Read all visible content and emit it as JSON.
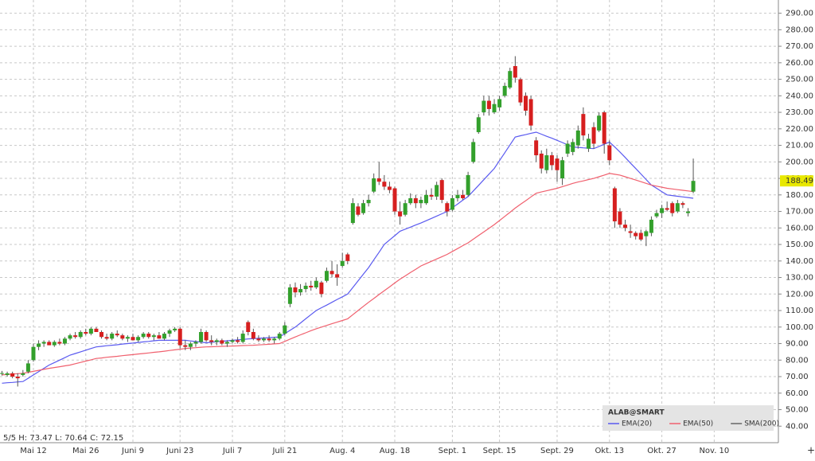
{
  "chart_data": {
    "type": "candlestick",
    "info": "5/5  H: 73.47  L: 70.64  C: 72.15",
    "legend_title": "ALAB@SMART",
    "last_price": 188.49,
    "up_color": "#33a02c",
    "down_color": "#d61f1f",
    "grid": true,
    "categories": [
      null,
      null,
      null,
      null,
      null,
      null,
      "Mai 12",
      null,
      null,
      null,
      null,
      null,
      null,
      null,
      null,
      null,
      "Mai 26",
      null,
      null,
      null,
      null,
      null,
      null,
      null,
      null,
      "Juni 9",
      null,
      null,
      null,
      null,
      null,
      null,
      null,
      null,
      "Juni 23",
      null,
      null,
      null,
      null,
      null,
      null,
      null,
      null,
      null,
      "Juli 7",
      null,
      null,
      null,
      null,
      null,
      null,
      null,
      null,
      null,
      "Juli 21",
      null,
      null,
      null,
      null,
      null,
      null,
      null,
      null,
      null,
      null,
      "Aug. 4",
      null,
      null,
      null,
      null,
      null,
      null,
      null,
      null,
      null,
      "Aug. 18",
      null,
      null,
      null,
      null,
      null,
      null,
      null,
      null,
      null,
      null,
      "Sept. 1",
      null,
      null,
      null,
      null,
      null,
      null,
      null,
      null,
      "Sept. 15",
      null,
      null,
      null,
      null,
      null,
      null,
      null,
      null,
      null,
      null,
      "Sept. 29",
      null,
      null,
      null,
      null,
      null,
      null,
      null,
      null,
      null,
      "Okt. 13",
      null,
      null,
      null,
      null,
      null,
      null,
      null,
      null,
      null,
      "Okt. 27",
      null,
      null,
      null,
      null,
      null,
      null,
      null,
      null,
      null,
      "Nov. 10"
    ],
    "open": [
      72,
      71,
      72,
      70,
      71,
      73,
      80,
      88,
      90,
      91,
      89,
      91,
      90,
      93,
      95,
      94,
      97,
      96,
      99,
      97,
      94,
      93,
      96,
      95,
      93,
      94,
      92,
      94,
      96,
      94,
      95,
      93,
      96,
      98,
      99,
      89,
      88,
      90,
      91,
      97,
      92,
      91,
      92,
      90,
      91,
      92,
      91,
      103,
      97,
      93,
      92,
      93,
      92,
      93,
      96,
      114,
      124,
      121,
      123,
      125,
      124,
      127,
      128,
      134,
      132,
      137,
      144,
      163,
      173,
      169,
      175,
      182,
      190,
      188,
      185,
      184,
      170,
      168,
      175,
      178,
      175,
      175,
      180,
      179,
      189,
      175,
      171,
      178,
      180,
      180,
      200,
      218,
      230,
      237,
      230,
      233,
      240,
      245,
      258,
      250,
      240,
      238,
      213,
      205,
      195,
      204,
      202,
      190,
      205,
      206,
      210,
      229,
      208,
      221,
      219,
      230,
      210,
      184,
      170,
      162,
      158,
      157,
      157,
      155,
      157,
      167,
      169,
      172,
      175,
      170,
      175,
      169,
      182,
      null,
      null,
      null,
      null
    ],
    "high": [
      73.47,
      73,
      73,
      72,
      74,
      80,
      90,
      92,
      92,
      92,
      92,
      93,
      94,
      96,
      97,
      98,
      99,
      100,
      100,
      98,
      96,
      97,
      98,
      96,
      95,
      96,
      95,
      97,
      97,
      96,
      97,
      97,
      99,
      100,
      100,
      92,
      91,
      92,
      99,
      98,
      95,
      93,
      93,
      92,
      93,
      94,
      98,
      104,
      99,
      95,
      94,
      95,
      94,
      97,
      103,
      126,
      127,
      126,
      127,
      128,
      130,
      128,
      136,
      140,
      138,
      145,
      145,
      178,
      175,
      177,
      180,
      193,
      200,
      192,
      188,
      185,
      176,
      177,
      181,
      180,
      179,
      183,
      184,
      188,
      190,
      176,
      180,
      183,
      183,
      194,
      214,
      229,
      240,
      240,
      238,
      240,
      248,
      257,
      264,
      251,
      242,
      240,
      215,
      207,
      208,
      206,
      204,
      203,
      213,
      214,
      222,
      233,
      217,
      224,
      230,
      231,
      213,
      185,
      172,
      165,
      162,
      158,
      159,
      159,
      167,
      171,
      174,
      176,
      176,
      177,
      176,
      172,
      202,
      null,
      null,
      null,
      null
    ],
    "low": [
      70.64,
      70,
      69,
      64,
      70,
      72,
      79,
      86,
      88,
      89,
      88,
      89,
      89,
      92,
      93,
      93,
      95,
      95,
      97,
      93,
      92,
      92,
      94,
      92,
      91,
      92,
      91,
      93,
      93,
      92,
      93,
      92,
      94,
      97,
      87,
      86,
      86,
      88,
      90,
      91,
      89,
      89,
      89,
      88,
      90,
      90,
      90,
      95,
      92,
      91,
      91,
      91,
      90,
      92,
      95,
      112,
      118,
      119,
      121,
      122,
      123,
      118,
      127,
      130,
      125,
      136,
      138,
      162,
      167,
      168,
      173,
      181,
      186,
      183,
      181,
      168,
      162,
      167,
      174,
      172,
      172,
      174,
      177,
      177,
      175,
      167,
      170,
      176,
      177,
      179,
      199,
      217,
      228,
      228,
      229,
      231,
      239,
      244,
      248,
      234,
      228,
      219,
      200,
      193,
      193,
      195,
      188,
      186,
      203,
      204,
      208,
      213,
      206,
      208,
      218,
      205,
      198,
      160,
      160,
      158,
      154,
      153,
      152,
      149,
      155,
      166,
      166,
      170,
      167,
      169,
      172,
      167,
      181,
      null,
      null,
      null,
      null
    ],
    "close": [
      72.15,
      72,
      70,
      69,
      72,
      78,
      88,
      90,
      91,
      89,
      91,
      90,
      93,
      95,
      94,
      97,
      96,
      99,
      97,
      94,
      93,
      96,
      95,
      93,
      94,
      92,
      94,
      96,
      94,
      95,
      93,
      96,
      98,
      99,
      89,
      88,
      90,
      91,
      97,
      92,
      91,
      92,
      90,
      91,
      92,
      91,
      96,
      97,
      93,
      92,
      93,
      92,
      93,
      96,
      101,
      124,
      121,
      123,
      125,
      124,
      128,
      120,
      134,
      132,
      130,
      140,
      140,
      175,
      168,
      175,
      177,
      190,
      188,
      185,
      183,
      170,
      167,
      175,
      178,
      175,
      177,
      180,
      179,
      186,
      177,
      170,
      178,
      180,
      178,
      192,
      212,
      227,
      237,
      232,
      235,
      238,
      246,
      255,
      251,
      236,
      231,
      222,
      204,
      196,
      204,
      198,
      195,
      201,
      211,
      212,
      219,
      216,
      214,
      211,
      228,
      211,
      201,
      164,
      162,
      160,
      157,
      155,
      153,
      158,
      165,
      169,
      172,
      171,
      169,
      175,
      174,
      170,
      188.49,
      null,
      null,
      null,
      null
    ],
    "series": [
      {
        "name": "EMA(20)",
        "color": "#5a5af0",
        "values": [
          66,
          66.3,
          66.5,
          66.8,
          67,
          69,
          71,
          73,
          75,
          77,
          78.5,
          80,
          81.5,
          83,
          84,
          85,
          86,
          87,
          88,
          88.3,
          88.7,
          89,
          89.3,
          89.7,
          90,
          90.3,
          90.7,
          91,
          91.3,
          91.7,
          92,
          92,
          92,
          92,
          92,
          92,
          91.6,
          91.2,
          90.9,
          90.5,
          90.8,
          91.1,
          91.4,
          91.7,
          92,
          92.3,
          92.5,
          92.8,
          93,
          93.2,
          93.4,
          93.6,
          93.8,
          94,
          96,
          98,
          100,
          102.5,
          105,
          107.5,
          110,
          111.7,
          113.3,
          115,
          116.7,
          118.3,
          120,
          124,
          128,
          132,
          136,
          140.7,
          145.3,
          150,
          152.7,
          155.3,
          158,
          159.3,
          160.5,
          161.8,
          163,
          164.4,
          165.8,
          167.2,
          168.6,
          170,
          172.3,
          174.5,
          176.8,
          179,
          182.4,
          185.8,
          189.2,
          192.6,
          196,
          200.8,
          205.5,
          210.3,
          215,
          215.8,
          216.5,
          217.3,
          218,
          216.8,
          215.5,
          214.3,
          213,
          211.7,
          210.3,
          209,
          208.8,
          208.5,
          208.3,
          208,
          209.3,
          210.7,
          212,
          209,
          206,
          202.7,
          199.3,
          196,
          192.7,
          189.3,
          186,
          184,
          182,
          180,
          179.6,
          179.2,
          178.8,
          178.4,
          178,
          null,
          null,
          null,
          null
        ]
      },
      {
        "name": "EMA(50)",
        "color": "#f0606e",
        "values": [
          71,
          71.3,
          71.5,
          71.8,
          72,
          72.6,
          73.2,
          73.8,
          74.4,
          75,
          75.5,
          76,
          76.5,
          77,
          77.8,
          78.6,
          79.4,
          80.2,
          81,
          81.3,
          81.7,
          82,
          82.3,
          82.7,
          83,
          83.3,
          83.7,
          84,
          84.3,
          84.7,
          85,
          85.4,
          85.8,
          86.2,
          86.6,
          87,
          87.3,
          87.5,
          87.8,
          88,
          88.1,
          88.2,
          88.3,
          88.4,
          88.5,
          88.6,
          88.8,
          88.9,
          89,
          89.2,
          89.4,
          89.6,
          89.8,
          90,
          91.3,
          92.7,
          94,
          95.3,
          96.5,
          97.8,
          99,
          100,
          101,
          102,
          103,
          104,
          105,
          107.5,
          110,
          112.5,
          115,
          117.3,
          119.7,
          122,
          124.3,
          126.7,
          129,
          131,
          133,
          135,
          137,
          138.4,
          139.8,
          141.2,
          142.6,
          144,
          145.8,
          147.5,
          149.3,
          151,
          153.2,
          155.4,
          157.6,
          159.8,
          162,
          164.5,
          167,
          169.5,
          172,
          174.3,
          176.5,
          178.8,
          181,
          181.8,
          182.5,
          183.3,
          184,
          185,
          186,
          187,
          187.8,
          188.5,
          189.3,
          190,
          191,
          192,
          193,
          192.5,
          192,
          191,
          190,
          189,
          188,
          187,
          186,
          185.3,
          184.7,
          184,
          183.6,
          183.2,
          182.8,
          182.4,
          182,
          null,
          null,
          null,
          null
        ]
      },
      {
        "name": "SMA(200)",
        "color": "#666666"
      }
    ],
    "ylim": [
      30,
      298
    ],
    "yticks": [
      {
        "value": 40,
        "label": "40.00"
      },
      {
        "value": 50,
        "label": "50.00"
      },
      {
        "value": 60,
        "label": "60.00"
      },
      {
        "value": 70,
        "label": "70.00"
      },
      {
        "value": 80,
        "label": "80.00"
      },
      {
        "value": 90,
        "label": "90.00"
      },
      {
        "value": 100,
        "label": "100.00"
      },
      {
        "value": 110,
        "label": "110.00"
      },
      {
        "value": 120,
        "label": "120.00"
      },
      {
        "value": 130,
        "label": "130.00"
      },
      {
        "value": 140,
        "label": "140.00"
      },
      {
        "value": 150,
        "label": "150.00"
      },
      {
        "value": 160,
        "label": "160.00"
      },
      {
        "value": 170,
        "label": "170.00"
      },
      {
        "value": 180,
        "label": "180.00"
      },
      {
        "value": 190,
        "label": "190.00"
      },
      {
        "value": 200,
        "label": "200.00"
      },
      {
        "value": 210,
        "label": "210.00"
      },
      {
        "value": 220,
        "label": "220.00"
      },
      {
        "value": 230,
        "label": "230.00"
      },
      {
        "value": 240,
        "label": "240.00"
      },
      {
        "value": 250,
        "label": "250.00"
      },
      {
        "value": 260,
        "label": "260.00"
      },
      {
        "value": 270,
        "label": "270.00"
      },
      {
        "value": 280,
        "label": "280.00"
      },
      {
        "value": 290,
        "label": "290.00"
      }
    ]
  }
}
